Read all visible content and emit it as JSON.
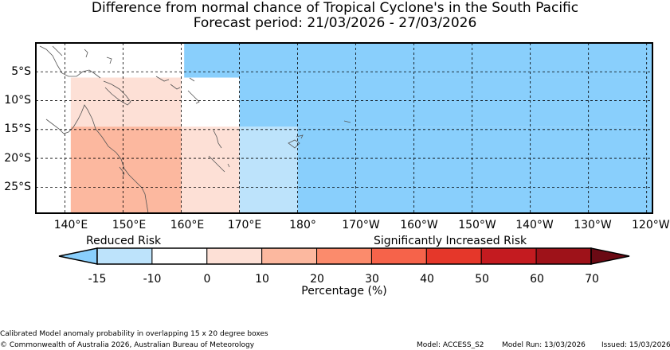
{
  "title_line1": "Difference from normal chance of Tropical Cyclone's in the South Pacific",
  "title_line2": "Forecast period: 21/03/2026 - 27/03/2026",
  "map": {
    "lat_labels": [
      "5°S",
      "10°S",
      "15°S",
      "20°S",
      "25°S"
    ],
    "lon_labels": [
      "140°E",
      "150°E",
      "160°E",
      "170°E",
      "180°",
      "170°W",
      "160°W",
      "150°W",
      "140°W",
      "130°W",
      "120°W"
    ],
    "extent": {
      "lon_min": 135,
      "lon_max": 241,
      "lat_min": -29.5,
      "lat_max": 0
    },
    "risk_boxes": [
      {
        "lon_from": 141,
        "lon_to": 160,
        "lat_from": -6,
        "lat_to": -14.5,
        "category": "0 to 10",
        "color": "#fde0d6"
      },
      {
        "lon_from": 141,
        "lon_to": 160,
        "lat_from": -14.5,
        "lat_to": -29.5,
        "category": "10 to 20",
        "color": "#fcb89f"
      },
      {
        "lon_from": 160,
        "lon_to": 170,
        "lat_from": -14.5,
        "lat_to": -29.5,
        "category": "0 to 10",
        "color": "#fde0d6"
      },
      {
        "lon_from": 170,
        "lon_to": 180,
        "lat_from": -14.5,
        "lat_to": -29.5,
        "category": "-15 to -10",
        "color": "#bde3fb"
      },
      {
        "lon_from": 160.5,
        "lon_to": 241,
        "lat_from": 0,
        "lat_to": -6,
        "category": "below -15",
        "color": "#89cffc"
      },
      {
        "lon_from": 170,
        "lon_to": 241,
        "lat_from": -6,
        "lat_to": -14.5,
        "category": "below -15",
        "color": "#89cffc"
      },
      {
        "lon_from": 180,
        "lon_to": 241,
        "lat_from": -14.5,
        "lat_to": -29.5,
        "category": "below -15",
        "color": "#89cffc"
      }
    ]
  },
  "legend": {
    "reduced_label": "Reduced Risk",
    "increased_label": "Significantly Increased Risk",
    "ticks": [
      "-15",
      "-10",
      "0",
      "10",
      "20",
      "30",
      "40",
      "50",
      "60",
      "70"
    ],
    "low_arrow_color": "#89cffc",
    "high_arrow_color": "#6b0a14",
    "colors": [
      "#bde3fb",
      "#ffffff",
      "#fde0d6",
      "#fcb89f",
      "#fb8b6c",
      "#f6634a",
      "#e5372a",
      "#c41b20",
      "#9e1219"
    ],
    "xlabel": "Percentage (%)"
  },
  "footer": {
    "note": "Calibrated Model anomaly probability in overlapping 15 x 20 degree boxes",
    "copyright": "© Commonwealth of Australia 2026, Australian Bureau of Meteorology",
    "model": "Model: ACCESS_S2",
    "model_run": "Model Run: 13/03/2026",
    "issued": "Issued: 15/03/2026"
  },
  "colors": {
    "coastline": "#555555",
    "gridline": "#000000",
    "frame": "#000000"
  }
}
